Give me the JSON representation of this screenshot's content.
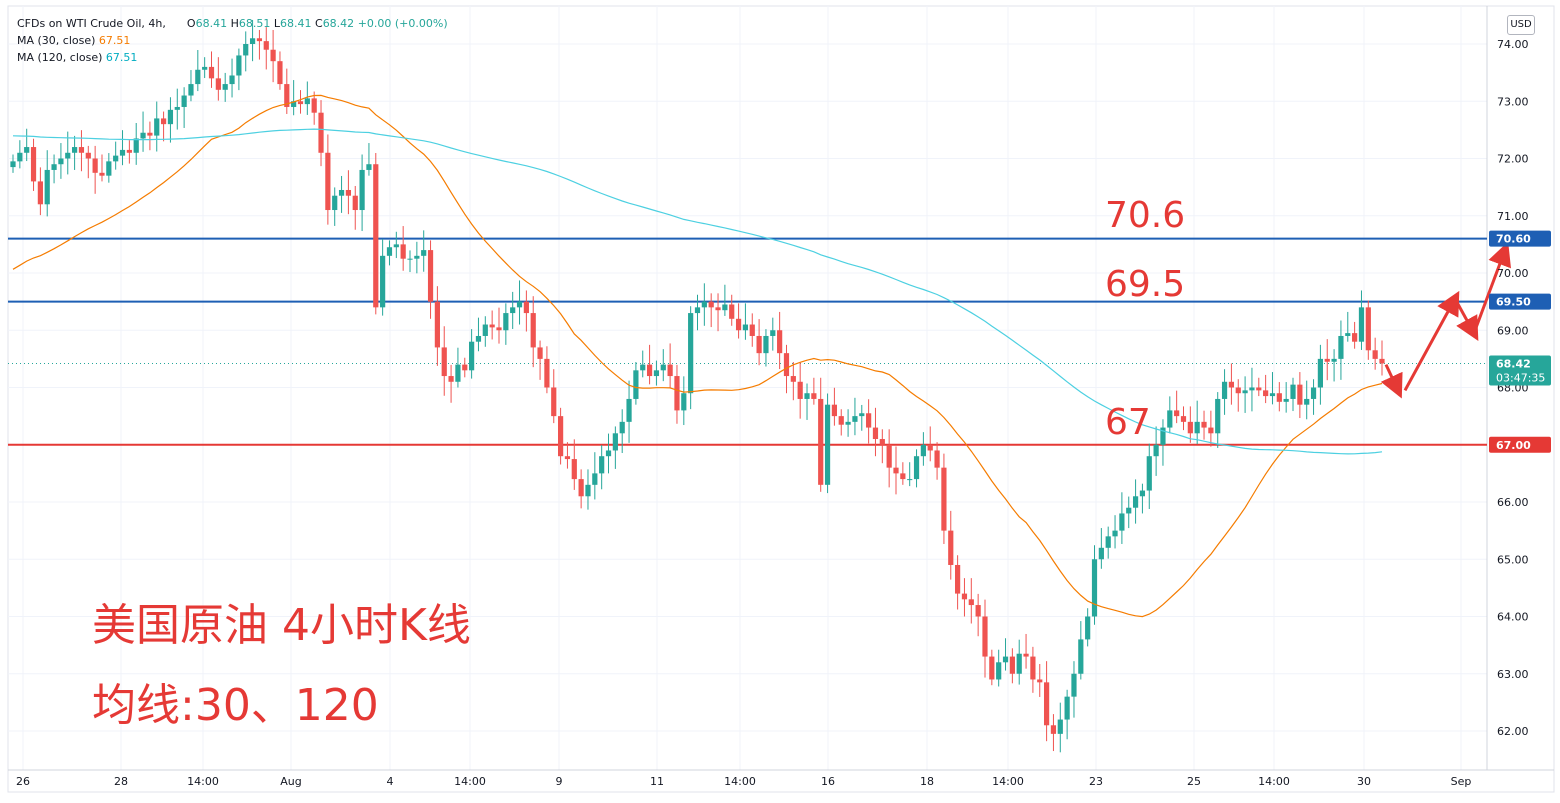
{
  "legend": {
    "title": "CFDs on WTI Crude Oil, 4h,",
    "o_label": "O",
    "o": "68.41",
    "h_label": "H",
    "h": "68.51",
    "l_label": "L",
    "l": "68.41",
    "c_label": "C",
    "c": "68.42",
    "change": "+0.00 (+0.00%)",
    "ma30_label": "MA (30, close)",
    "ma30_value": "67.51",
    "ma120_label": "MA (120, close)",
    "ma120_value": "67.51"
  },
  "currency": "USD",
  "annotations": {
    "title": "美国原油 4小时K线",
    "subtitle": "均线:30、120",
    "level_high": "70.6",
    "level_mid": "69.5",
    "level_low": "67"
  },
  "colors": {
    "up": "#26a69a",
    "down": "#ef5350",
    "ma30": "#f57c00",
    "ma120": "#4dd0e1",
    "resistance": "#1e5fb4",
    "support": "#e53935",
    "annotation": "#e53935"
  },
  "chart_data": {
    "type": "candlestick",
    "symbol": "CFDs on WTI Crude Oil",
    "timeframe": "4h",
    "y_axis": {
      "ticks": [
        "74.00",
        "73.00",
        "72.00",
        "71.00",
        "70.00",
        "69.00",
        "68.00",
        "67.00",
        "66.00",
        "65.00",
        "64.00",
        "63.00",
        "62.00"
      ],
      "ylim": [
        61.6,
        74.3
      ]
    },
    "x_axis": {
      "ticks": [
        "26",
        "28",
        "14:00",
        "Aug",
        "4",
        "14:00",
        "9",
        "11",
        "14:00",
        "16",
        "18",
        "14:00",
        "23",
        "25",
        "14:00",
        "30",
        "Sep"
      ]
    },
    "price_labels": [
      {
        "value": "70.60",
        "kind": "resistance"
      },
      {
        "value": "69.50",
        "kind": "resistance"
      },
      {
        "value": "68.42",
        "kind": "last"
      },
      {
        "value": "67.00",
        "kind": "support"
      }
    ],
    "countdown": "03:47:35",
    "horizontal_lines": [
      70.6,
      69.5,
      67.0
    ],
    "last_price": 68.42,
    "closes": [
      71.95,
      72.1,
      72.2,
      71.6,
      71.2,
      71.8,
      71.9,
      72.0,
      72.1,
      72.2,
      72.1,
      72.0,
      71.75,
      71.7,
      71.95,
      72.05,
      72.15,
      72.1,
      72.35,
      72.45,
      72.4,
      72.7,
      72.6,
      72.85,
      72.9,
      73.1,
      73.3,
      73.55,
      73.6,
      73.4,
      73.2,
      73.3,
      73.45,
      73.8,
      74.0,
      74.1,
      74.05,
      73.9,
      73.7,
      73.3,
      72.9,
      73.0,
      72.95,
      73.05,
      72.8,
      72.1,
      71.1,
      71.35,
      71.45,
      71.35,
      71.1,
      71.8,
      71.9,
      69.4,
      70.3,
      70.45,
      70.5,
      70.25,
      70.25,
      70.3,
      70.4,
      69.5,
      68.7,
      68.2,
      68.1,
      68.4,
      68.3,
      68.8,
      68.9,
      69.1,
      69.05,
      69.0,
      69.3,
      69.4,
      69.5,
      69.3,
      68.7,
      68.5,
      68.0,
      67.5,
      66.8,
      66.75,
      66.4,
      66.1,
      66.3,
      66.5,
      66.8,
      66.9,
      67.2,
      67.4,
      67.8,
      68.3,
      68.4,
      68.2,
      68.3,
      68.4,
      68.2,
      67.6,
      67.9,
      69.3,
      69.4,
      69.5,
      69.4,
      69.35,
      69.45,
      69.2,
      69.0,
      69.1,
      68.9,
      68.6,
      68.9,
      69.0,
      68.6,
      68.2,
      68.1,
      67.8,
      67.9,
      67.8,
      66.3,
      67.7,
      67.5,
      67.35,
      67.4,
      67.5,
      67.55,
      67.3,
      67.1,
      67.0,
      66.6,
      66.5,
      66.4,
      66.4,
      66.8,
      67.0,
      66.9,
      66.6,
      65.5,
      64.9,
      64.4,
      64.3,
      64.2,
      64.0,
      63.3,
      62.9,
      63.2,
      63.3,
      63.0,
      63.35,
      63.3,
      62.9,
      62.85,
      62.1,
      61.95,
      62.2,
      62.6,
      63.0,
      63.6,
      64.0,
      65.0,
      65.2,
      65.4,
      65.5,
      65.8,
      65.9,
      66.1,
      66.2,
      66.8,
      67.0,
      67.3,
      67.6,
      67.5,
      67.4,
      67.2,
      67.4,
      67.3,
      67.2,
      67.8,
      68.1,
      68.0,
      67.9,
      67.95,
      68.0,
      67.95,
      67.85,
      67.9,
      67.75,
      67.8,
      68.05,
      67.7,
      67.8,
      68.0,
      68.5,
      68.45,
      68.5,
      68.9,
      68.95,
      68.8,
      69.4,
      68.65,
      68.5,
      68.42
    ]
  }
}
